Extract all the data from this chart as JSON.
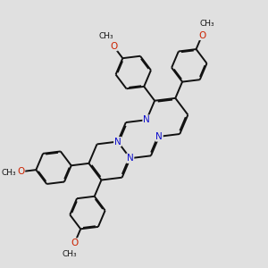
{
  "background_color": "#e0e0e0",
  "bond_color": "#111111",
  "nitrogen_color": "#1010cc",
  "oxygen_color": "#cc2200",
  "lw": 1.4,
  "dbo": 0.018,
  "figsize": [
    3.0,
    3.0
  ],
  "dpi": 100,
  "xlim": [
    0.0,
    10.0
  ],
  "ylim": [
    0.5,
    10.5
  ]
}
